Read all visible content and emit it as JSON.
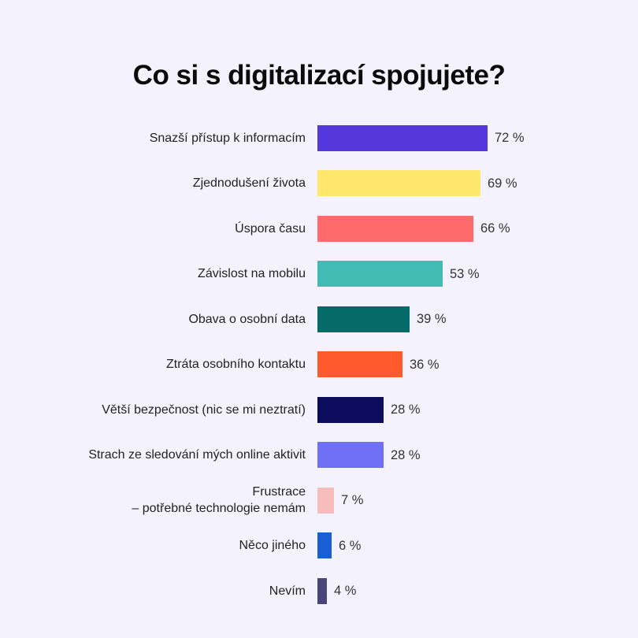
{
  "chart_data": {
    "type": "bar",
    "orientation": "horizontal",
    "title": "Co si s digitalizací spojujete?",
    "categories": [
      "Snazší přístup k informacím",
      "Zjednodušení života",
      "Úspora času",
      "Závislost na mobilu",
      "Obava o osobní data",
      "Ztráta osobního kontaktu",
      "Větší bezpečnost (nic se mi neztratí)",
      "Strach ze sledování mých online aktivit",
      "Frustrace\n– potřebné technologie nemám",
      "Něco jiného",
      "Nevím"
    ],
    "values": [
      72,
      69,
      66,
      53,
      39,
      36,
      28,
      28,
      7,
      6,
      4
    ],
    "value_labels": [
      "72 %",
      "69 %",
      "66 %",
      "53 %",
      "39 %",
      "36 %",
      "28 %",
      "28 %",
      "7 %",
      "6 %",
      "4 %"
    ],
    "colors": [
      "#5438dc",
      "#ffe66d",
      "#ff6b6b",
      "#42bbb4",
      "#056b69",
      "#ff5a2e",
      "#0c0c5c",
      "#7070f6",
      "#f7bcbc",
      "#1a5ed6",
      "#4a4478"
    ],
    "unit": "%",
    "grid": false,
    "legend": "none"
  }
}
